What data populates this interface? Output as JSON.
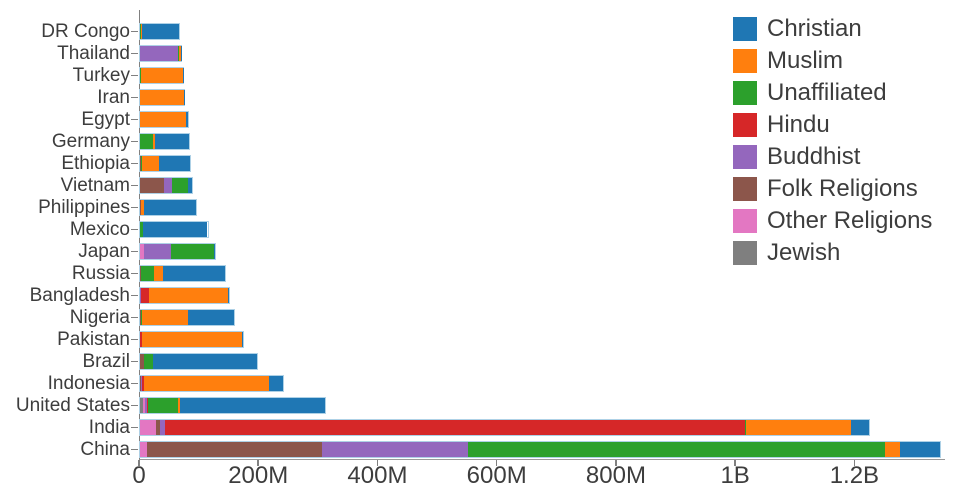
{
  "chart_data": {
    "type": "bar",
    "orientation": "horizontal",
    "stacked": true,
    "title": "",
    "xlabel": "",
    "ylabel": "",
    "unit": "millions of people",
    "grid": false,
    "legend_position": "top-right",
    "categories": [
      "DR Congo",
      "Thailand",
      "Turkey",
      "Iran",
      "Egypt",
      "Germany",
      "Ethiopia",
      "Vietnam",
      "Philippines",
      "Mexico",
      "Japan",
      "Russia",
      "Bangladesh",
      "Nigeria",
      "Pakistan",
      "Brazil",
      "Indonesia",
      "United States",
      "India",
      "China"
    ],
    "series": [
      {
        "name": "Christian",
        "color": "#1f77b4",
        "values": [
          63.15,
          0.6,
          0.31,
          0.27,
          4.14,
          56.54,
          52.07,
          7.21,
          86.37,
          107.78,
          2.03,
          104.75,
          0.74,
          78.05,
          2.75,
          173.26,
          23.66,
          243.06,
          31.13,
          68.41
        ]
      },
      {
        "name": "Muslim",
        "color": "#ff7f0e",
        "values": [
          0.97,
          3.8,
          71.33,
          73.59,
          76.99,
          4.76,
          28.72,
          0.16,
          5.22,
          0.11,
          0.25,
          14.29,
          133.54,
          77.26,
          167.41,
          0.04,
          209.12,
          2.77,
          176.19,
          24.69
        ]
      },
      {
        "name": "Unaffiliated",
        "color": "#2ca02c",
        "values": [
          1.18,
          0.2,
          0.87,
          0.07,
          0.16,
          20.35,
          0.52,
          26.04,
          0.07,
          5.26,
          72.12,
          23.18,
          0.15,
          0.63,
          0.02,
          15.39,
          0.24,
          50.98,
          0.87,
          700.68
        ]
      },
      {
        "name": "Hindu",
        "color": "#d62728",
        "values": [
          0,
          0.07,
          0,
          0,
          0,
          0.08,
          0,
          0.05,
          0,
          0,
          0.03,
          0.04,
          13.52,
          0,
          3.33,
          0,
          4.05,
          1.79,
          973.75,
          0.02
        ]
      },
      {
        "name": "Buddhist",
        "color": "#9467bd",
        "values": [
          0,
          64.4,
          0.04,
          0,
          0,
          0.25,
          0.01,
          14.38,
          0.05,
          0.01,
          45.82,
          0.14,
          0.74,
          0,
          0.02,
          0.97,
          1.72,
          3.57,
          9.25,
          244.13
        ]
      },
      {
        "name": "Folk Religions",
        "color": "#8c564b",
        "values": [
          0.7,
          0.07,
          0.04,
          0.02,
          0.01,
          0.08,
          2.26,
          39.75,
          1.42,
          0.11,
          0.51,
          0.29,
          0.15,
          2.22,
          0.02,
          5.45,
          0.72,
          0.63,
          5.84,
          294.32
        ]
      },
      {
        "name": "Other Religions",
        "color": "#e377c2",
        "values": [
          0.01,
          0.01,
          0.15,
          0.22,
          0.02,
          0.08,
          0.02,
          0.35,
          0.19,
          0.06,
          5.95,
          0.29,
          0.01,
          0.16,
          0.02,
          0.58,
          0.24,
          1.9,
          27.56,
          12.05
        ]
      },
      {
        "name": "Jewish",
        "color": "#7f7f7f",
        "values": [
          0,
          0,
          0.02,
          0.01,
          0,
          0.25,
          0.01,
          0,
          0,
          0.06,
          0,
          0.29,
          0,
          0,
          0,
          0.11,
          0,
          5.69,
          0.01,
          0
        ]
      }
    ],
    "stack_order": [
      "Jewish",
      "Other Religions",
      "Folk Religions",
      "Buddhist",
      "Hindu",
      "Unaffiliated",
      "Muslim",
      "Christian"
    ],
    "x_axis": {
      "min": 0,
      "max": 1352,
      "tick_values": [
        0,
        200,
        400,
        600,
        800,
        1000,
        1200
      ],
      "tick_labels": [
        "0",
        "200M",
        "400M",
        "600M",
        "800M",
        "1B",
        "1.2B"
      ]
    },
    "legend": {
      "entries": [
        "Christian",
        "Muslim",
        "Unaffiliated",
        "Hindu",
        "Buddhist",
        "Folk Religions",
        "Other Religions",
        "Jewish"
      ]
    }
  }
}
